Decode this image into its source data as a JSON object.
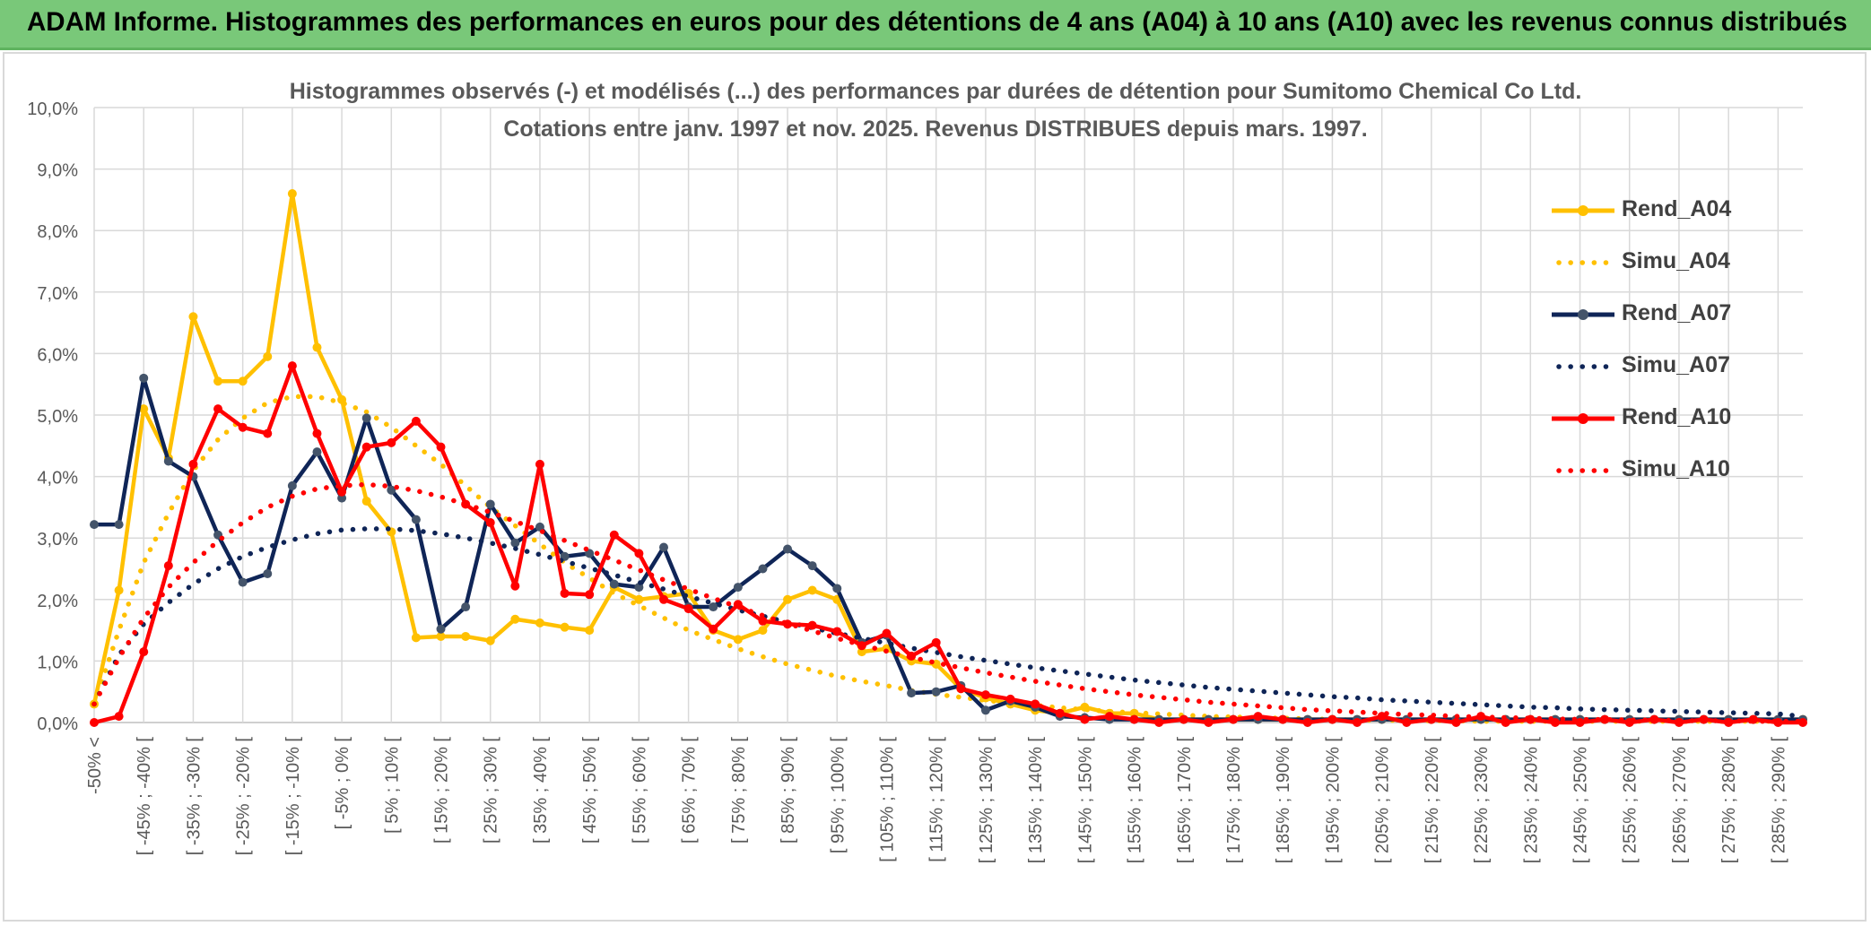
{
  "banner": {
    "title": "ADAM Informe. Histogrammes des performances en euros pour des détentions de 4 ans (A04) à 10 ans (A10) avec les revenus connus distribués"
  },
  "colors": {
    "gold": "#FFC000",
    "navy": "#0F2557",
    "red": "#FF0000",
    "grid": "#D9D9D9",
    "axis_text": "#595959",
    "banner_bg": "#79C879"
  },
  "chart_data": {
    "type": "line",
    "title_line1": "Histogrammes observés (-) et modélisés (...) des performances par durées de détention pour Sumitomo Chemical Co Ltd.",
    "title_line2": "Cotations entre janv. 1997 et nov. 2025. Revenus DISTRIBUES depuis mars. 1997.",
    "ylim": [
      0,
      10
    ],
    "y_ticks": [
      "0,0%",
      "1,0%",
      "2,0%",
      "3,0%",
      "4,0%",
      "5,0%",
      "6,0%",
      "7,0%",
      "8,0%",
      "9,0%",
      "10,0%"
    ],
    "x_labels": [
      "-50% <",
      "[ -45% ; -40% [",
      "[ -35% ; -30% [",
      "[ -25% ; -20% [",
      "[ -15% ; -10% [",
      "[ -5% ; 0% [",
      "[ 5% ; 10% [",
      "[ 15% ; 20% [",
      "[ 25% ; 30% [",
      "[ 35% ; 40% [",
      "[ 45% ; 50% [",
      "[ 55% ; 60% [",
      "[ 65% ; 70% [",
      "[ 75% ; 80% [",
      "[ 85% ; 90% [",
      "[ 95% ; 100% [",
      "[ 105% ; 110% [",
      "[ 115% ; 120% [",
      "[ 125% ; 130% [",
      "[ 135% ; 140% [",
      "[ 145% ; 150% [",
      "[ 155% ; 160% [",
      "[ 165% ; 170% [",
      "[ 175% ; 180% [",
      "[ 185% ; 190% [",
      "[ 195% ; 200% [",
      "[ 205% ; 210% [",
      "[ 215% ; 220% [",
      "[ 225% ; 230% [",
      "[ 235% ; 240% [",
      "[ 245% ; 250% [",
      "[ 255% ; 260% [",
      "[ 265% ; 270% [",
      "[ 275% ; 280% [",
      "[ 285% ; 290% ["
    ],
    "n_points": 70,
    "series": [
      {
        "name": "Rend_A04",
        "style": "solid",
        "color": "#FFC000",
        "values": [
          0.3,
          2.15,
          5.1,
          4.3,
          6.6,
          5.55,
          5.55,
          5.95,
          8.6,
          6.1,
          5.25,
          3.6,
          3.1,
          1.38,
          1.4,
          1.4,
          1.33,
          1.68,
          1.62,
          1.55,
          1.5,
          2.2,
          2.0,
          2.05,
          2.1,
          1.5,
          1.35,
          1.5,
          2.0,
          2.15,
          2.0,
          1.15,
          1.2,
          1.0,
          0.95,
          0.55,
          0.4,
          0.3,
          0.2,
          0.15,
          0.25,
          0.15,
          0.15,
          0.05,
          0.05,
          0.05,
          0.05,
          0.05,
          0.05,
          0.05,
          0.05,
          0.05,
          0.05,
          0.05,
          0.05,
          0.05,
          0.05,
          0.05,
          0.05,
          0.05,
          0.05,
          0.05,
          0.05,
          0.05,
          0.05,
          0.05,
          0.05,
          0.05,
          0.05,
          0.05
        ]
      },
      {
        "name": "Simu_A04",
        "style": "dotted",
        "color": "#FFC000",
        "values": [
          0.3,
          1.5,
          2.6,
          3.4,
          4.1,
          4.6,
          4.95,
          5.2,
          5.3,
          5.3,
          5.2,
          5.05,
          4.8,
          4.5,
          4.2,
          3.85,
          3.5,
          3.2,
          2.9,
          2.6,
          2.35,
          2.1,
          1.9,
          1.7,
          1.5,
          1.35,
          1.2,
          1.07,
          0.95,
          0.85,
          0.75,
          0.67,
          0.6,
          0.52,
          0.46,
          0.41,
          0.36,
          0.32,
          0.28,
          0.24,
          0.21,
          0.18,
          0.16,
          0.14,
          0.12,
          0.1,
          0.09,
          0.08,
          0.07,
          0.06,
          0.05,
          0.04,
          0.04,
          0.03,
          0.03,
          0.03,
          0.02,
          0.02,
          0.02,
          0.02,
          0.02,
          0.02,
          0.02,
          0.02,
          0.02,
          0.02,
          0.02,
          0.02,
          0.02,
          0.02
        ]
      },
      {
        "name": "Rend_A07",
        "style": "solid",
        "color": "#0F2557",
        "values": [
          3.22,
          3.22,
          5.6,
          4.25,
          4.0,
          3.05,
          2.28,
          2.42,
          3.85,
          4.4,
          3.65,
          4.95,
          3.78,
          3.3,
          1.52,
          1.88,
          3.55,
          2.92,
          3.18,
          2.7,
          2.75,
          2.25,
          2.2,
          2.85,
          1.88,
          1.88,
          2.2,
          2.5,
          2.82,
          2.55,
          2.18,
          1.3,
          1.42,
          0.48,
          0.5,
          0.6,
          0.2,
          0.35,
          0.25,
          0.1,
          0.08,
          0.05,
          0.05,
          0.05,
          0.05,
          0.05,
          0.05,
          0.05,
          0.05,
          0.05,
          0.05,
          0.05,
          0.05,
          0.05,
          0.05,
          0.05,
          0.05,
          0.05,
          0.05,
          0.05,
          0.05,
          0.05,
          0.05,
          0.05,
          0.05,
          0.05,
          0.05,
          0.05,
          0.05,
          0.05
        ]
      },
      {
        "name": "Simu_A07",
        "style": "dotted",
        "color": "#0F2557",
        "values": [
          0.3,
          1.1,
          1.6,
          1.95,
          2.25,
          2.5,
          2.7,
          2.85,
          2.97,
          3.07,
          3.13,
          3.15,
          3.15,
          3.12,
          3.07,
          3.0,
          2.92,
          2.83,
          2.73,
          2.62,
          2.51,
          2.4,
          2.28,
          2.17,
          2.05,
          1.94,
          1.83,
          1.73,
          1.63,
          1.54,
          1.45,
          1.37,
          1.29,
          1.21,
          1.14,
          1.07,
          1.01,
          0.95,
          0.89,
          0.84,
          0.79,
          0.74,
          0.69,
          0.65,
          0.61,
          0.57,
          0.54,
          0.51,
          0.48,
          0.45,
          0.42,
          0.4,
          0.37,
          0.35,
          0.33,
          0.31,
          0.29,
          0.27,
          0.25,
          0.24,
          0.22,
          0.21,
          0.2,
          0.19,
          0.18,
          0.17,
          0.16,
          0.15,
          0.14,
          0.1
        ]
      },
      {
        "name": "Rend_A10",
        "style": "solid",
        "color": "#FF0000",
        "values": [
          0.0,
          0.1,
          1.15,
          2.55,
          4.2,
          5.1,
          4.8,
          4.7,
          5.8,
          4.7,
          3.75,
          4.48,
          4.55,
          4.9,
          4.48,
          3.55,
          3.25,
          2.22,
          4.2,
          2.1,
          2.08,
          3.05,
          2.75,
          2.0,
          1.85,
          1.52,
          1.92,
          1.65,
          1.6,
          1.58,
          1.48,
          1.25,
          1.45,
          1.08,
          1.3,
          0.55,
          0.45,
          0.38,
          0.3,
          0.15,
          0.05,
          0.1,
          0.05,
          0.0,
          0.05,
          0.0,
          0.05,
          0.1,
          0.05,
          0.0,
          0.05,
          0.0,
          0.1,
          0.0,
          0.05,
          0.0,
          0.1,
          0.0,
          0.05,
          0.0,
          0.0,
          0.05,
          0.0,
          0.05,
          0.0,
          0.05,
          0.0,
          0.05,
          0.0,
          0.0
        ]
      },
      {
        "name": "Simu_A10",
        "style": "dotted",
        "color": "#FF0000",
        "values": [
          0.3,
          1.05,
          1.7,
          2.2,
          2.6,
          2.95,
          3.25,
          3.5,
          3.68,
          3.8,
          3.85,
          3.87,
          3.84,
          3.77,
          3.67,
          3.55,
          3.42,
          3.27,
          3.12,
          2.96,
          2.8,
          2.64,
          2.48,
          2.32,
          2.17,
          2.02,
          1.88,
          1.74,
          1.61,
          1.49,
          1.37,
          1.26,
          1.16,
          1.06,
          0.97,
          0.89,
          0.81,
          0.74,
          0.67,
          0.61,
          0.55,
          0.5,
          0.45,
          0.41,
          0.37,
          0.33,
          0.3,
          0.27,
          0.24,
          0.21,
          0.19,
          0.17,
          0.15,
          0.13,
          0.12,
          0.1,
          0.09,
          0.08,
          0.07,
          0.06,
          0.05,
          0.05,
          0.04,
          0.04,
          0.03,
          0.03,
          0.03,
          0.02,
          0.02,
          0.02
        ]
      }
    ],
    "legend": [
      "Rend_A04",
      "Simu_A04",
      "Rend_A07",
      "Simu_A07",
      "Rend_A10",
      "Simu_A10"
    ]
  }
}
